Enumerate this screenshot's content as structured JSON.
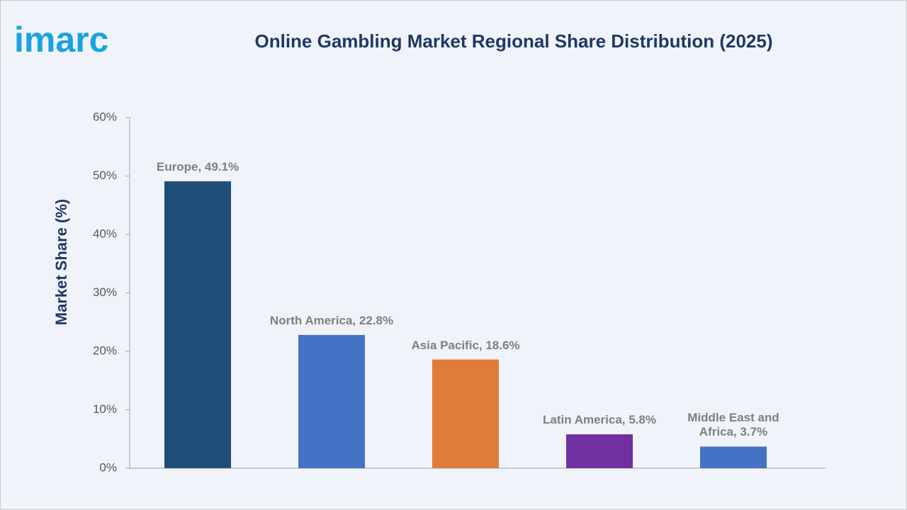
{
  "logo": "imarc",
  "chart_data": {
    "type": "bar",
    "title": "Online Gambling Market Regional Share Distribution (2025)",
    "ylabel": "Market Share (%)",
    "categories": [
      "Europe",
      "North America",
      "Asia Pacific",
      "Latin America",
      "Middle East and Africa"
    ],
    "values": [
      49.1,
      22.8,
      18.6,
      5.8,
      3.7
    ],
    "value_labels": [
      "Europe, 49.1%",
      "North America, 22.8%",
      "Asia Pacific, 18.6%",
      "Latin America, 5.8%",
      "Middle East and Africa, 3.7%"
    ],
    "colors": [
      "#1f4e79",
      "#4472c4",
      "#e07b39",
      "#7030a0",
      "#4472c4"
    ],
    "ylim": [
      0,
      60
    ],
    "yticks": [
      {
        "value": 0,
        "label": "0%"
      },
      {
        "value": 10,
        "label": "10%"
      },
      {
        "value": 20,
        "label": "20%"
      },
      {
        "value": 30,
        "label": "30%"
      },
      {
        "value": 40,
        "label": "40%"
      },
      {
        "value": 50,
        "label": "50%"
      },
      {
        "value": 60,
        "label": "60%"
      }
    ],
    "grid": false
  }
}
